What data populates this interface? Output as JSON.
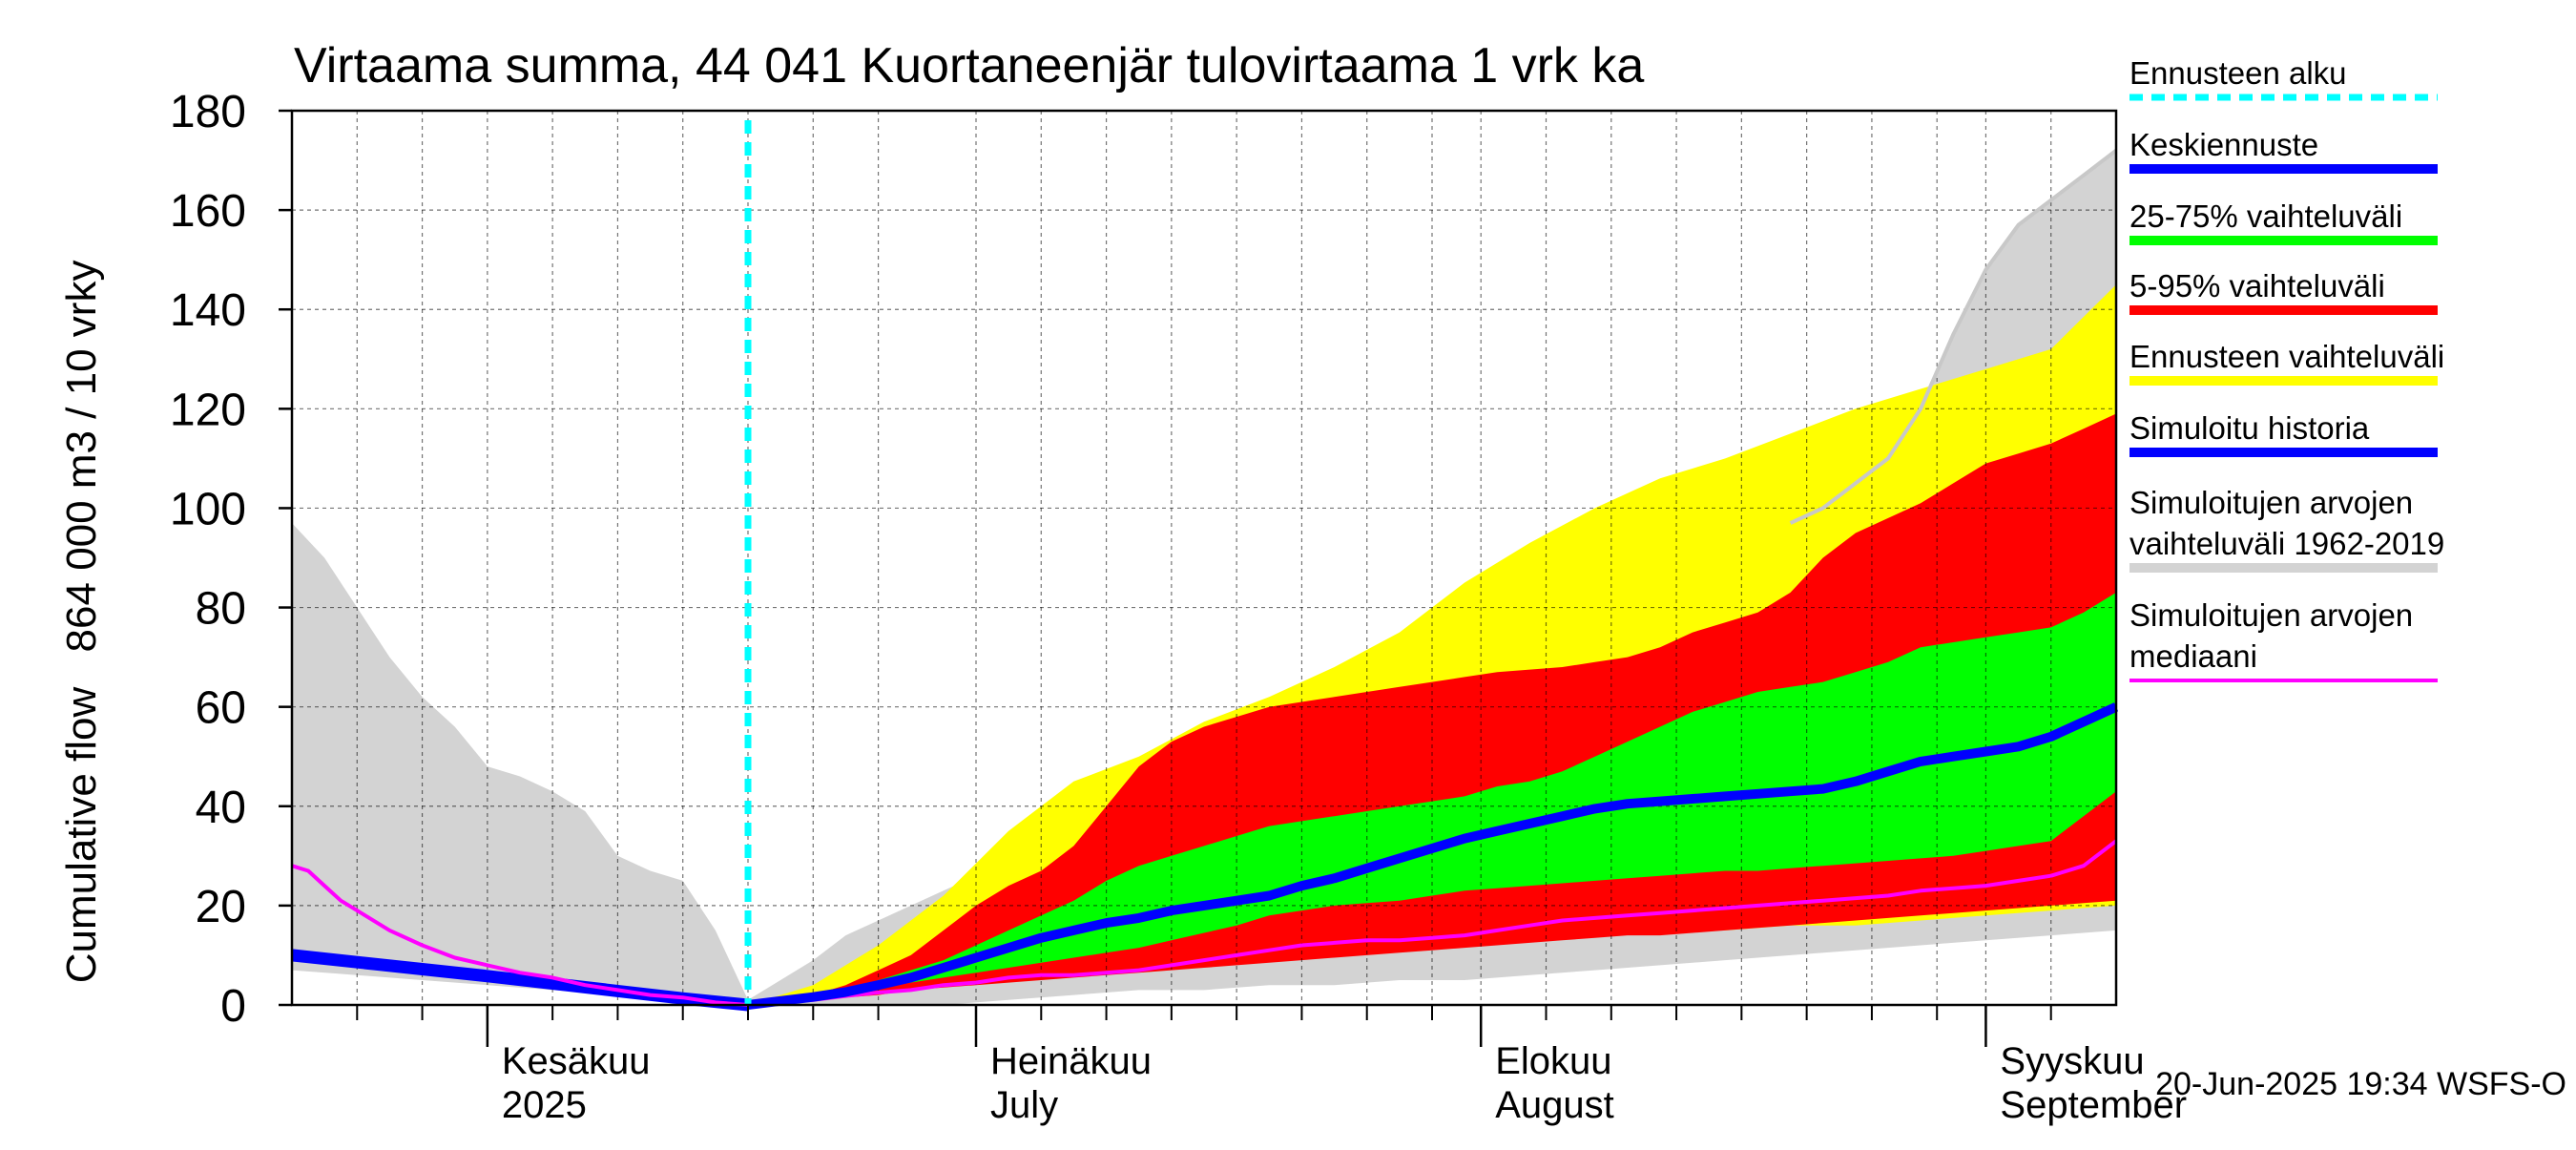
{
  "chart_data": {
    "type": "area",
    "title": "Virtaama summa, 44 041 Kuortaneenjär tulovirtaama 1 vrk ka",
    "ylabel_fi": "864 000 m3 / 10 vrky",
    "ylabel_en": "Cumulative flow",
    "ylim": [
      0,
      180
    ],
    "yticks": [
      0,
      20,
      40,
      60,
      80,
      100,
      120,
      140,
      160,
      180
    ],
    "xlim": [
      0,
      112
    ],
    "x_unit": "days since 2025-05-20",
    "forecast_start": 28,
    "month_ticks": [
      12,
      42,
      73,
      104
    ],
    "minor_ticks": [
      4,
      8,
      12,
      16,
      20,
      24,
      28,
      32,
      36,
      42,
      46,
      50,
      54,
      58,
      62,
      66,
      70,
      73,
      77,
      81,
      85,
      89,
      93,
      97,
      101,
      104,
      108
    ],
    "month_labels": [
      {
        "x": 12,
        "fi": "Kesäkuu",
        "en": "2025"
      },
      {
        "x": 42,
        "fi": "Heinäkuu",
        "en": "July"
      },
      {
        "x": 73,
        "fi": "Elokuu",
        "en": "August"
      },
      {
        "x": 104,
        "fi": "Syyskuu",
        "en": "September"
      }
    ],
    "colors": {
      "forecast_start": "#00ffff",
      "mean": "#0000ff",
      "p25_75": "#00ff00",
      "p5_95": "#ff0000",
      "range": "#ffff00",
      "sim_history": "#0000ff",
      "hist_range": "#d3d3d3",
      "hist_median": "#ff00ff"
    },
    "series": [
      {
        "name": "hist_range_upper",
        "x": [
          0,
          2,
          4,
          6,
          8,
          10,
          12,
          14,
          16,
          18,
          20,
          22,
          24,
          26,
          28,
          30,
          32,
          34,
          36,
          38,
          40,
          42,
          44,
          46,
          48,
          50,
          52,
          54,
          56,
          58,
          60,
          62,
          64,
          66,
          68,
          70,
          72,
          74,
          76,
          78,
          80,
          82,
          84,
          86,
          88,
          90,
          92,
          94,
          96,
          98,
          100,
          102,
          104,
          106,
          108,
          110,
          112
        ],
        "values": [
          97,
          90,
          80,
          70,
          62,
          56,
          48,
          46,
          43,
          39,
          30,
          27,
          25,
          15,
          1,
          5,
          9,
          14,
          17,
          20,
          23,
          26,
          28,
          30,
          35,
          40,
          45,
          48,
          51,
          55,
          58,
          62,
          64,
          66,
          67,
          70,
          73,
          76,
          80,
          84,
          87,
          89,
          90,
          92,
          93,
          95,
          97,
          100,
          105,
          110,
          120,
          135,
          148,
          157,
          162,
          167,
          172
        ]
      },
      {
        "name": "hist_range_lower",
        "x": [
          0,
          4,
          8,
          12,
          16,
          20,
          24,
          28,
          32,
          36,
          40,
          44,
          48,
          52,
          56,
          60,
          64,
          68,
          72,
          76,
          80,
          84,
          88,
          92,
          96,
          100,
          104,
          108,
          112
        ],
        "values": [
          7,
          6,
          5,
          4,
          3,
          2,
          1,
          0,
          0,
          0,
          0,
          1,
          2,
          3,
          3,
          4,
          4,
          5,
          5,
          6,
          7,
          8,
          9,
          10,
          11,
          12,
          13,
          14,
          15
        ]
      },
      {
        "name": "range_upper",
        "x": [
          28,
          32,
          36,
          40,
          44,
          48,
          52,
          56,
          60,
          64,
          68,
          72,
          76,
          80,
          84,
          88,
          92,
          96,
          100,
          104,
          108,
          112
        ],
        "values": [
          0,
          4,
          12,
          22,
          35,
          45,
          50,
          57,
          62,
          68,
          75,
          85,
          93,
          100,
          106,
          110,
          115,
          120,
          124,
          128,
          132,
          145
        ]
      },
      {
        "name": "range_lower",
        "x": [
          28,
          32,
          36,
          40,
          44,
          48,
          52,
          56,
          60,
          64,
          68,
          72,
          76,
          80,
          84,
          88,
          92,
          96,
          100,
          104,
          108,
          112
        ],
        "values": [
          0,
          1,
          2,
          4,
          5,
          6,
          7,
          8,
          9,
          10,
          11,
          12,
          13,
          14,
          15,
          15,
          16,
          16,
          17,
          18,
          19,
          20
        ]
      },
      {
        "name": "p5_95_upper",
        "x": [
          28,
          30,
          32,
          34,
          36,
          38,
          40,
          42,
          44,
          46,
          48,
          50,
          52,
          54,
          56,
          58,
          60,
          62,
          64,
          66,
          68,
          70,
          72,
          74,
          76,
          78,
          80,
          82,
          84,
          86,
          88,
          90,
          92,
          94,
          96,
          98,
          100,
          102,
          104,
          106,
          108,
          110,
          112
        ],
        "values": [
          0,
          1,
          2,
          4,
          7,
          10,
          15,
          20,
          24,
          27,
          32,
          40,
          48,
          53,
          56,
          58,
          60,
          61,
          62,
          63,
          64,
          65,
          66,
          67,
          67.5,
          68,
          69,
          70,
          72,
          75,
          77,
          79,
          83,
          90,
          95,
          98,
          101,
          105,
          109,
          111,
          113,
          116,
          119
        ]
      },
      {
        "name": "p5_95_lower",
        "x": [
          28,
          30,
          32,
          34,
          36,
          38,
          40,
          42,
          44,
          46,
          48,
          50,
          52,
          54,
          56,
          58,
          60,
          62,
          64,
          66,
          68,
          70,
          72,
          74,
          76,
          78,
          80,
          82,
          84,
          86,
          88,
          90,
          92,
          94,
          96,
          98,
          100,
          102,
          104,
          106,
          108,
          110,
          112
        ],
        "values": [
          0,
          0.5,
          1,
          1.5,
          2,
          3,
          3.5,
          4,
          4.5,
          5,
          5.5,
          6,
          6.5,
          7,
          7.5,
          8,
          8.5,
          9,
          9.5,
          10,
          10.5,
          11,
          11.5,
          12,
          12.5,
          13,
          13.5,
          14,
          14,
          14.5,
          15,
          15.5,
          16,
          16.5,
          17,
          17.5,
          18,
          18.5,
          19,
          19.5,
          20,
          20.5,
          21
        ]
      },
      {
        "name": "p25_75_upper",
        "x": [
          28,
          30,
          32,
          34,
          36,
          38,
          40,
          42,
          44,
          46,
          48,
          50,
          52,
          54,
          56,
          58,
          60,
          62,
          64,
          66,
          68,
          70,
          72,
          74,
          76,
          78,
          80,
          82,
          84,
          86,
          88,
          90,
          92,
          94,
          96,
          98,
          100,
          102,
          104,
          106,
          108,
          110,
          112
        ],
        "values": [
          0,
          1,
          2,
          3,
          5,
          7,
          9,
          12,
          15,
          18,
          21,
          25,
          28,
          30,
          32,
          34,
          36,
          37,
          38,
          39,
          40,
          41,
          42,
          44,
          45,
          47,
          50,
          53,
          56,
          59,
          61,
          63,
          64,
          65,
          67,
          69,
          72,
          73,
          74,
          75,
          76,
          79,
          83
        ]
      },
      {
        "name": "p25_75_lower",
        "x": [
          28,
          30,
          32,
          34,
          36,
          38,
          40,
          42,
          44,
          46,
          48,
          50,
          52,
          54,
          56,
          58,
          60,
          62,
          64,
          66,
          68,
          70,
          72,
          74,
          76,
          78,
          80,
          82,
          84,
          86,
          88,
          90,
          92,
          94,
          96,
          98,
          100,
          102,
          104,
          106,
          108,
          110,
          112
        ],
        "values": [
          0,
          0.5,
          1.5,
          2.5,
          3.5,
          4.5,
          5.5,
          6.5,
          7.5,
          8.5,
          9.5,
          10.5,
          11.5,
          13,
          14.5,
          16,
          18,
          19,
          20,
          20.5,
          21,
          22,
          23,
          23.5,
          24,
          24.5,
          25,
          25.5,
          26,
          26.5,
          27,
          27,
          27.5,
          28,
          28.5,
          29,
          29.5,
          30,
          31,
          32,
          33,
          38,
          43
        ]
      },
      {
        "name": "Keskiennuste",
        "x": [
          28,
          30,
          32,
          34,
          36,
          38,
          40,
          42,
          44,
          46,
          48,
          50,
          52,
          54,
          56,
          58,
          60,
          62,
          64,
          66,
          68,
          70,
          72,
          74,
          76,
          78,
          80,
          82,
          84,
          86,
          88,
          90,
          92,
          94,
          96,
          98,
          100,
          102,
          104,
          106,
          108,
          110,
          112
        ],
        "values": [
          0,
          0.8,
          1.6,
          2.6,
          4,
          5.5,
          7.5,
          9.5,
          11.5,
          13.5,
          15,
          16.5,
          17.5,
          19,
          20,
          21,
          22,
          24,
          25.5,
          27.5,
          29.5,
          31.5,
          33.5,
          35,
          36.5,
          38,
          39.5,
          40.5,
          41,
          41.5,
          42,
          42.5,
          43,
          43.5,
          45,
          47,
          49,
          50,
          51,
          52,
          54,
          57,
          60
        ]
      },
      {
        "name": "Simuloitu historia",
        "x": [
          0,
          4,
          8,
          12,
          16,
          20,
          24,
          28
        ],
        "values": [
          10,
          8.6,
          7.2,
          5.8,
          4.3,
          2.8,
          1.3,
          0
        ]
      },
      {
        "name": "hist_median",
        "x": [
          0,
          1,
          2,
          3,
          4,
          6,
          8,
          10,
          12,
          14,
          16,
          18,
          20,
          22,
          24,
          26,
          28,
          30,
          32,
          34,
          36,
          38,
          40,
          42,
          44,
          46,
          48,
          50,
          52,
          54,
          56,
          58,
          60,
          62,
          64,
          66,
          68,
          70,
          72,
          74,
          76,
          78,
          80,
          82,
          84,
          86,
          88,
          90,
          92,
          94,
          96,
          98,
          100,
          102,
          104,
          106,
          108,
          110,
          112
        ],
        "values": [
          28,
          27,
          24,
          21,
          19,
          15,
          12,
          9.5,
          8,
          6.5,
          5.5,
          4,
          3,
          2,
          1.5,
          0.5,
          0,
          0.5,
          1,
          1.8,
          2.5,
          3,
          4,
          4.5,
          5.5,
          6,
          6,
          6.5,
          7,
          8,
          9,
          10,
          11,
          12,
          12.5,
          13,
          13,
          13.5,
          14,
          15,
          16,
          17,
          17.5,
          18,
          18.5,
          19,
          19.5,
          20,
          20.5,
          21,
          21.5,
          22,
          23,
          23.5,
          24,
          25,
          26,
          28,
          33
        ]
      }
    ]
  },
  "legend": {
    "items": [
      {
        "label": "Ennusteen alku",
        "color": "#00ffff",
        "style": "dashed"
      },
      {
        "label": "Keskiennuste",
        "color": "#0000ff",
        "style": "solid"
      },
      {
        "label": "25-75% vaihteluväli",
        "color": "#00ff00",
        "style": "solid"
      },
      {
        "label": "5-95% vaihteluväli",
        "color": "#ff0000",
        "style": "solid"
      },
      {
        "label": "Ennusteen vaihteluväli",
        "color": "#ffff00",
        "style": "solid"
      },
      {
        "label": "Simuloitu historia",
        "color": "#0000ff",
        "style": "solid"
      },
      {
        "label": "Simuloitujen arvojen",
        "label2": "vaihteluväli 1962-2019",
        "color": "#d3d3d3",
        "style": "solid"
      },
      {
        "label": "Simuloitujen arvojen",
        "label2": "mediaani",
        "color": "#ff00ff",
        "style": "thin"
      }
    ]
  },
  "footer": {
    "timestamp": "20-Jun-2025 19:34 WSFS-O"
  }
}
